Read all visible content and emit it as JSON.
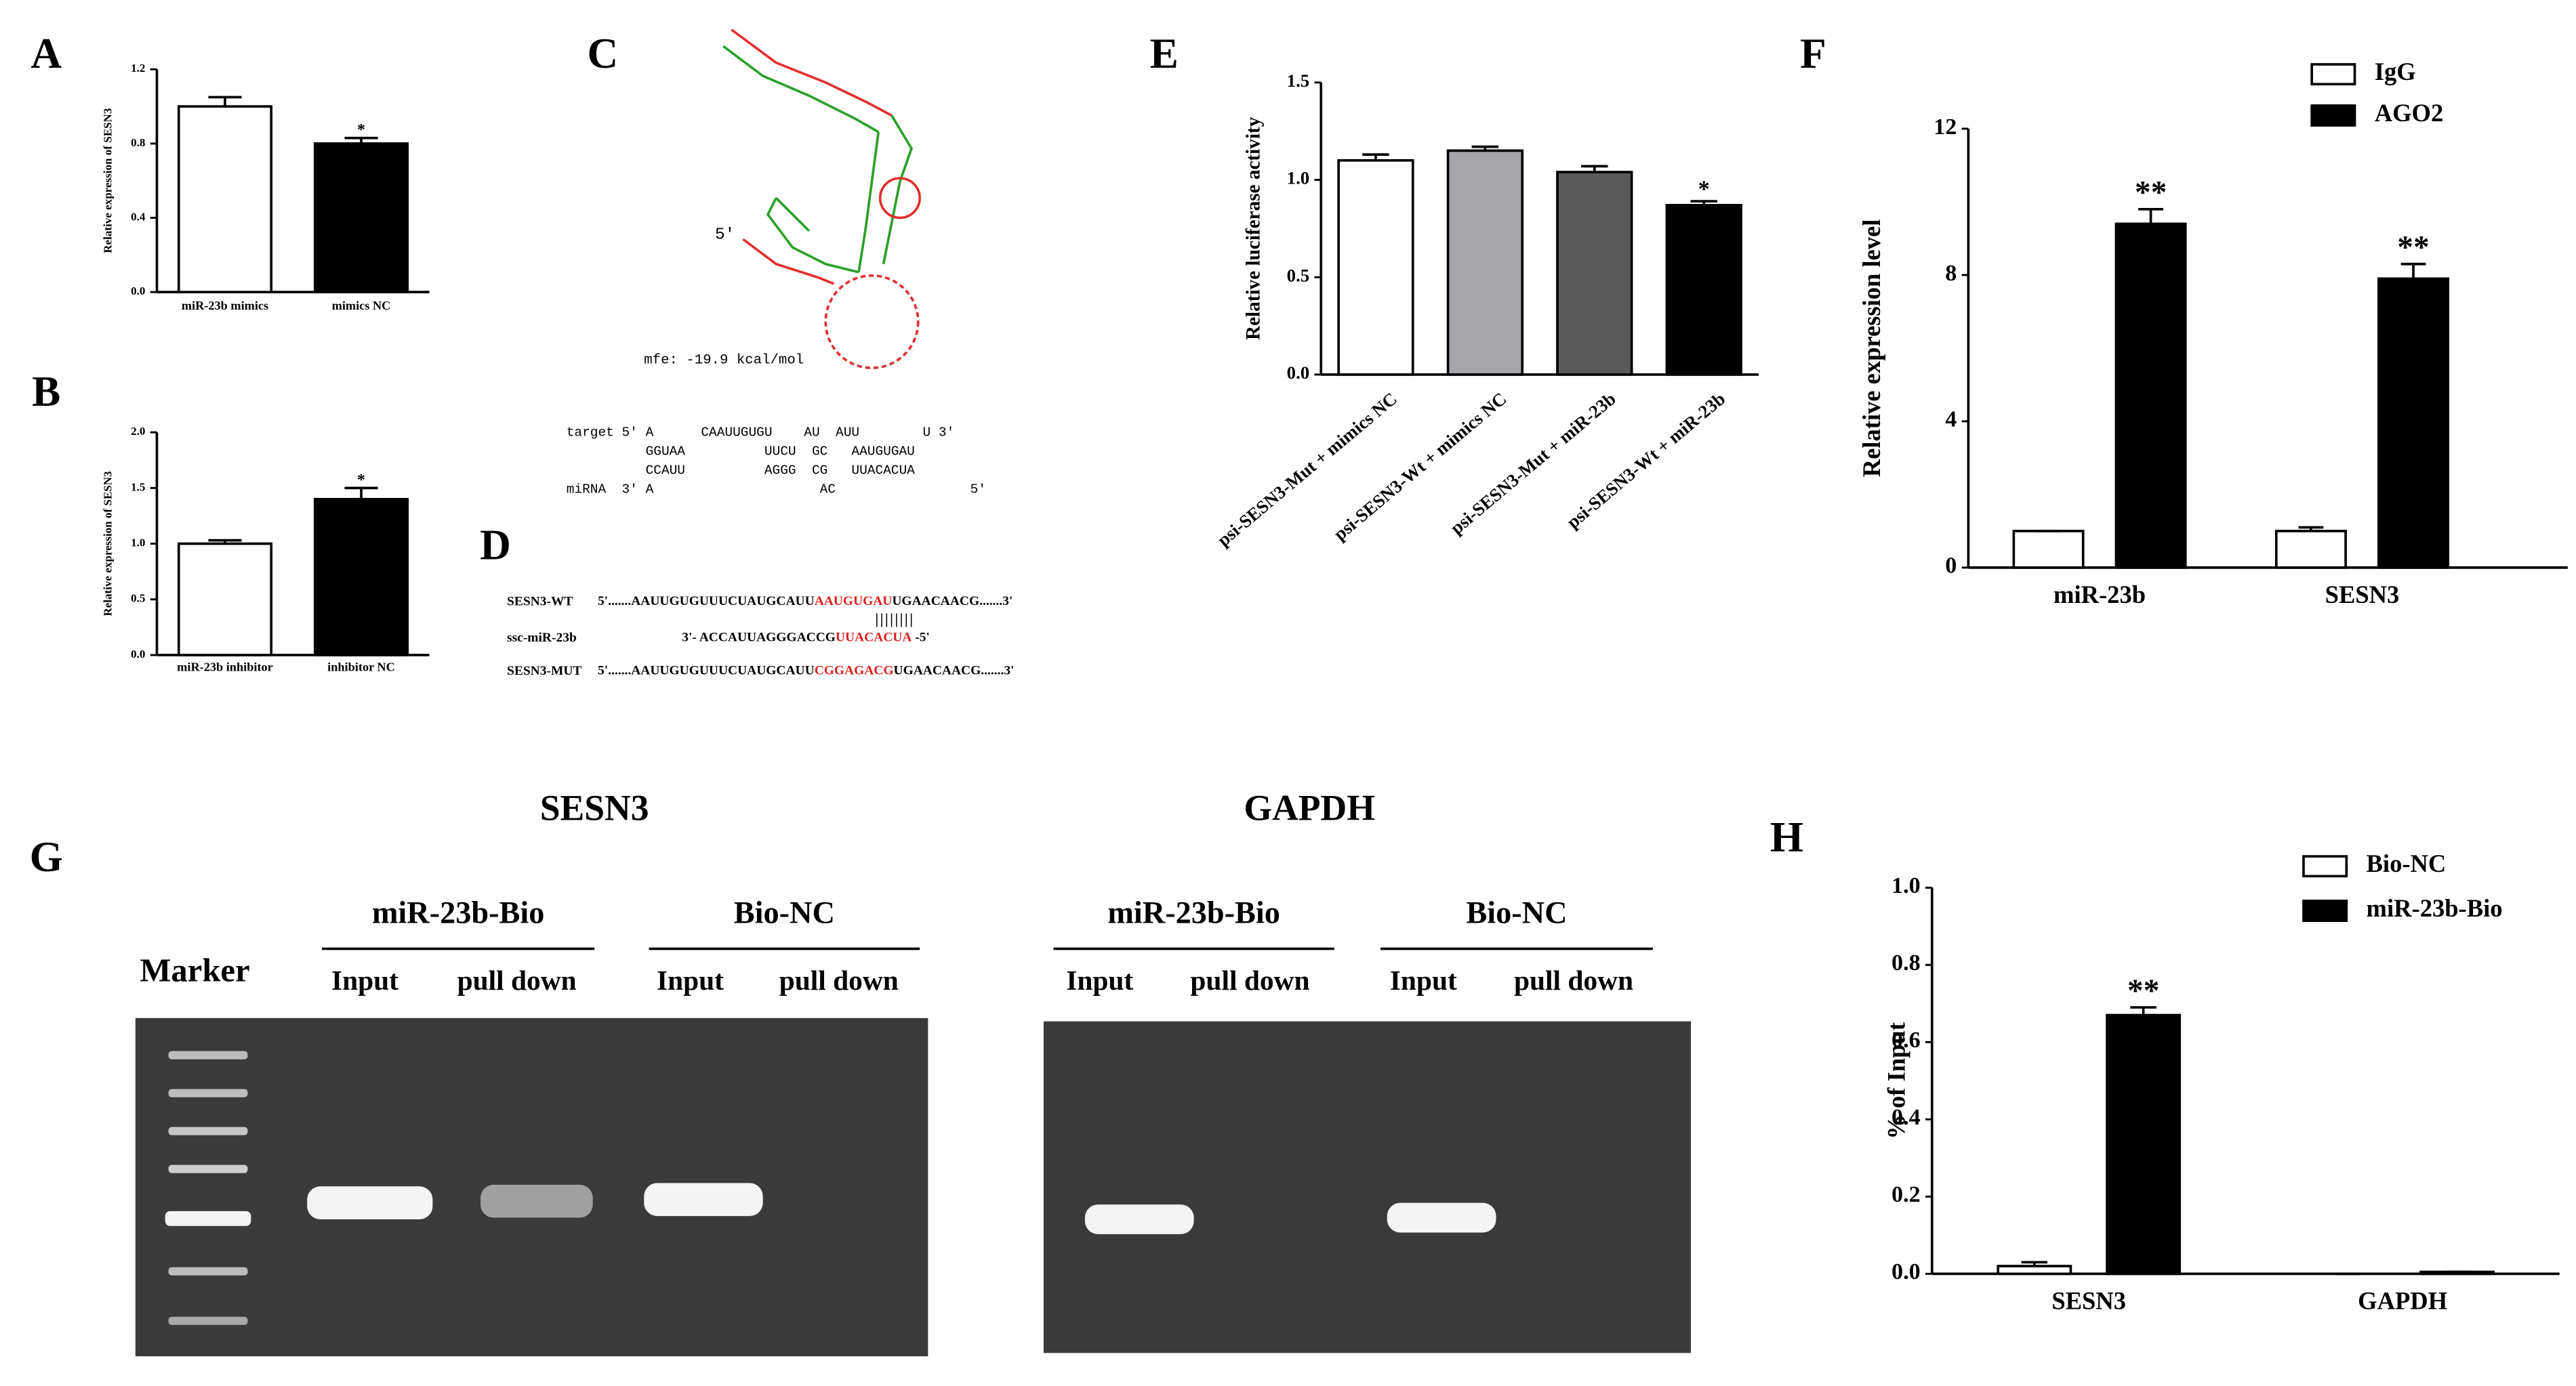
{
  "chart_data": [
    {
      "type": "bar",
      "label": "A",
      "ylabel": "Relative expression of SESN3",
      "categories": [
        "miR-23b mimics",
        "mimics NC"
      ],
      "values": [
        1.0,
        0.8
      ],
      "errors": [
        0.05,
        0.03
      ],
      "colors": [
        "#ffffff",
        "#000000"
      ],
      "significance": [
        null,
        "*"
      ],
      "ylim": [
        0,
        1.2
      ],
      "yticks": [
        {
          "value": 0,
          "label": "0.0"
        },
        {
          "value": 0.4,
          "label": "0.4"
        },
        {
          "value": 0.8,
          "label": "0.8"
        },
        {
          "value": 1.2,
          "label": "1.2"
        }
      ]
    },
    {
      "type": "bar",
      "label": "B",
      "ylabel": "Relative expression of SESN3",
      "categories": [
        "miR-23b inhibitor",
        "inhibitor NC"
      ],
      "values": [
        1.0,
        1.4
      ],
      "errors": [
        0.03,
        0.1
      ],
      "colors": [
        "#ffffff",
        "#000000"
      ],
      "significance": [
        null,
        "*"
      ],
      "ylim": [
        0,
        2.0
      ],
      "yticks": [
        {
          "value": 0,
          "label": "0.0"
        },
        {
          "value": 0.5,
          "label": "0.5"
        },
        {
          "value": 1.0,
          "label": "1.0"
        },
        {
          "value": 1.5,
          "label": "1.5"
        },
        {
          "value": 2.0,
          "label": "2.0"
        }
      ]
    },
    {
      "type": "bar",
      "label": "E",
      "ylabel": "Relative luciferase activity",
      "categories": [
        "psi-SESN3-Mut + mimics NC",
        "psi-SESN3-Wt + mimics NC",
        "psi-SESN3-Mut + miR-23b",
        "psi-SESN3-Wt + miR-23b"
      ],
      "values": [
        1.1,
        1.15,
        1.04,
        0.87
      ],
      "errors": [
        0.03,
        0.02,
        0.03,
        0.02
      ],
      "colors": [
        "#ffffff",
        "#a6a6aa",
        "#5a5a5a",
        "#000000"
      ],
      "significance": [
        null,
        null,
        null,
        "*"
      ],
      "ylim": [
        0,
        1.5
      ],
      "yticks": [
        {
          "value": 0,
          "label": "0.0"
        },
        {
          "value": 0.5,
          "label": "0.5"
        },
        {
          "value": 1.0,
          "label": "1.0"
        },
        {
          "value": 1.5,
          "label": "1.5"
        }
      ]
    },
    {
      "type": "grouped-bar",
      "label": "F",
      "ylabel": "Relative expression level",
      "categories": [
        "miR-23b",
        "SESN3"
      ],
      "series": [
        {
          "name": "IgG",
          "color": "#ffffff",
          "values": [
            1.0,
            1.0
          ],
          "errors": [
            0.0,
            0.1
          ],
          "significance": [
            null,
            null
          ]
        },
        {
          "name": "AGO2",
          "color": "#000000",
          "values": [
            9.4,
            7.9
          ],
          "errors": [
            0.4,
            0.4
          ],
          "significance": [
            "**",
            "**"
          ]
        }
      ],
      "ylim": [
        0,
        12
      ],
      "yticks": [
        0,
        4,
        8,
        12
      ]
    },
    {
      "type": "grouped-bar",
      "label": "H",
      "ylabel": "% of Input",
      "categories": [
        "SESN3",
        "GAPDH"
      ],
      "series": [
        {
          "name": "Bio-NC",
          "color": "#ffffff",
          "values": [
            0.02,
            0.0
          ],
          "errors": [
            0.01,
            0.0
          ],
          "significance": [
            null,
            null
          ]
        },
        {
          "name": "miR-23b-Bio",
          "color": "#000000",
          "values": [
            0.67,
            0.005
          ],
          "errors": [
            0.02,
            0.0
          ],
          "significance": [
            "**",
            null
          ]
        }
      ],
      "ylim": [
        0,
        1.0
      ],
      "yticks": [
        {
          "value": 0,
          "label": "0.0"
        },
        {
          "value": 0.2,
          "label": "0.2"
        },
        {
          "value": 0.4,
          "label": "0.4"
        },
        {
          "value": 0.6,
          "label": "0.6"
        },
        {
          "value": 0.8,
          "label": "0.8"
        },
        {
          "value": 1.0,
          "label": "1.0"
        }
      ]
    }
  ],
  "structure": {
    "label": "C",
    "five_prime": "5'",
    "mfe": "mfe: -19.9 kcal/mol",
    "alignment": [
      "target 5' A      CAAUUGUGU    AU  AUU        U 3'",
      "          GGUAA          UUCU  GC   AAUGUGAU",
      "          CCAUU          AGGG  CG   UUACACUA",
      "miRNA  3' A                     AC                 5'"
    ]
  },
  "sequences": {
    "label": "D",
    "pairing": "||||||||",
    "rows": [
      {
        "name": "SESN3-WT",
        "parts": [
          "5'.......AAUUGUGUUUCUAUGCAUU",
          "AAUGUGAU",
          "UGAACAACG.......3'"
        ]
      },
      {
        "name": "ssc-miR-23b",
        "parts": [
          "3'- ACCAUUAGGGACCG",
          "UUACACUA",
          " -5'"
        ]
      },
      {
        "name": "SESN3-MUT",
        "parts": [
          "5'.......AAUUGUGUUUCUAUGCAUU",
          "CGGAGACG",
          "UGAACAACG.......3'"
        ]
      }
    ]
  },
  "gel": {
    "label": "G",
    "marker": "Marker",
    "panels": [
      {
        "title": "SESN3",
        "groups": [
          {
            "name": "miR-23b-Bio",
            "lanes": [
              "Input",
              "pull down"
            ]
          },
          {
            "name": "Bio-NC",
            "lanes": [
              "Input",
              "pull down"
            ]
          }
        ]
      },
      {
        "title": "GAPDH",
        "groups": [
          {
            "name": "miR-23b-Bio",
            "lanes": [
              "Input",
              "pull down"
            ]
          },
          {
            "name": "Bio-NC",
            "lanes": [
              "Input",
              "pull down"
            ]
          }
        ]
      }
    ]
  }
}
